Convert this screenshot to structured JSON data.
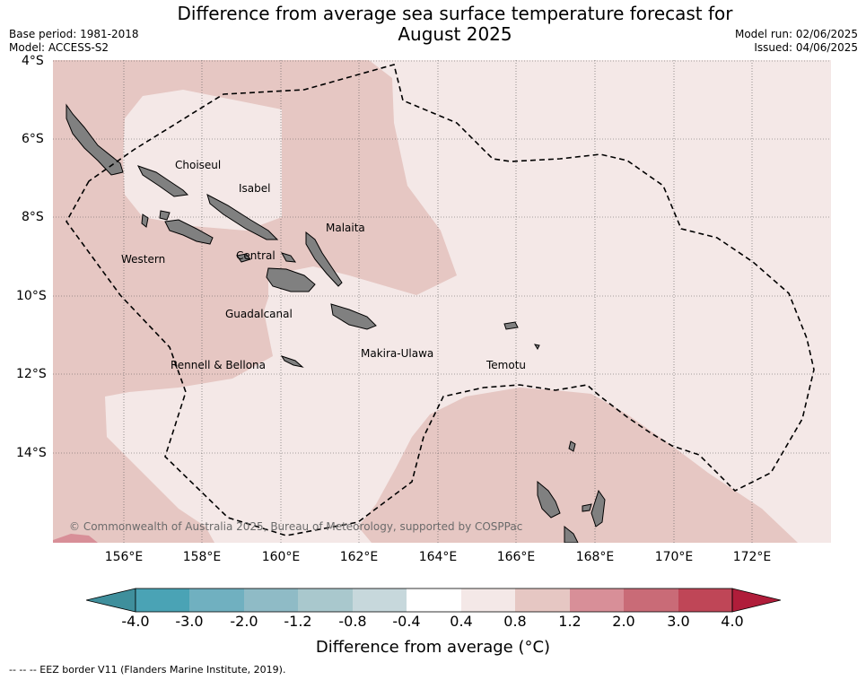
{
  "title": {
    "line1": "Difference from average sea surface temperature forecast for",
    "line2": "August 2025"
  },
  "meta_left": {
    "base_period": "Base period: 1981-2018",
    "model": "Model: ACCESS-S2"
  },
  "meta_right": {
    "model_run": "Model run: 02/06/2025",
    "issued": "Issued: 04/06/2025"
  },
  "map": {
    "lat_ticks": [
      "4°S",
      "6°S",
      "8°S",
      "10°S",
      "12°S",
      "14°S"
    ],
    "lon_ticks": [
      "156°E",
      "158°E",
      "160°E",
      "162°E",
      "164°E",
      "166°E",
      "168°E",
      "170°E",
      "172°E"
    ],
    "places": {
      "choiseul": "Choiseul",
      "isabel": "Isabel",
      "malaita": "Malaita",
      "western": "Western",
      "central": "Central",
      "guadalcanal": "Guadalcanal",
      "makira_ulawa": "Makira-Ulawa",
      "temotu": "Temotu",
      "rennell_bellona": "Rennell & Bellona"
    },
    "copyright": "© Commonwealth of Australia 2025, Bureau of Meteorology, supported by COSPPac",
    "colors": {
      "anomaly_0p4_0p8": "#f4e8e7",
      "anomaly_0p8_1p2": "#e6c7c3",
      "anomaly_1p2_2p0": "#d88f98",
      "land": "#808080",
      "eez_border": "#000000"
    }
  },
  "colorbar": {
    "labels": [
      "-4.0",
      "-3.0",
      "-2.0",
      "-1.2",
      "-0.8",
      "-0.4",
      "0.4",
      "0.8",
      "1.2",
      "2.0",
      "3.0",
      "4.0"
    ],
    "colors": [
      "#3f8f9c",
      "#4aa3b5",
      "#70b0c0",
      "#8fbbc6",
      "#a9c8cd",
      "#c7d8dc",
      "#ffffff",
      "#f4e8e7",
      "#e6c7c3",
      "#d88f98",
      "#c96b77",
      "#bf4657",
      "#b01d3a"
    ],
    "title": "Difference from average (°C)"
  },
  "eez_note": "--  --  -- EEZ border V11 (Flanders Marine Institute, 2019)."
}
